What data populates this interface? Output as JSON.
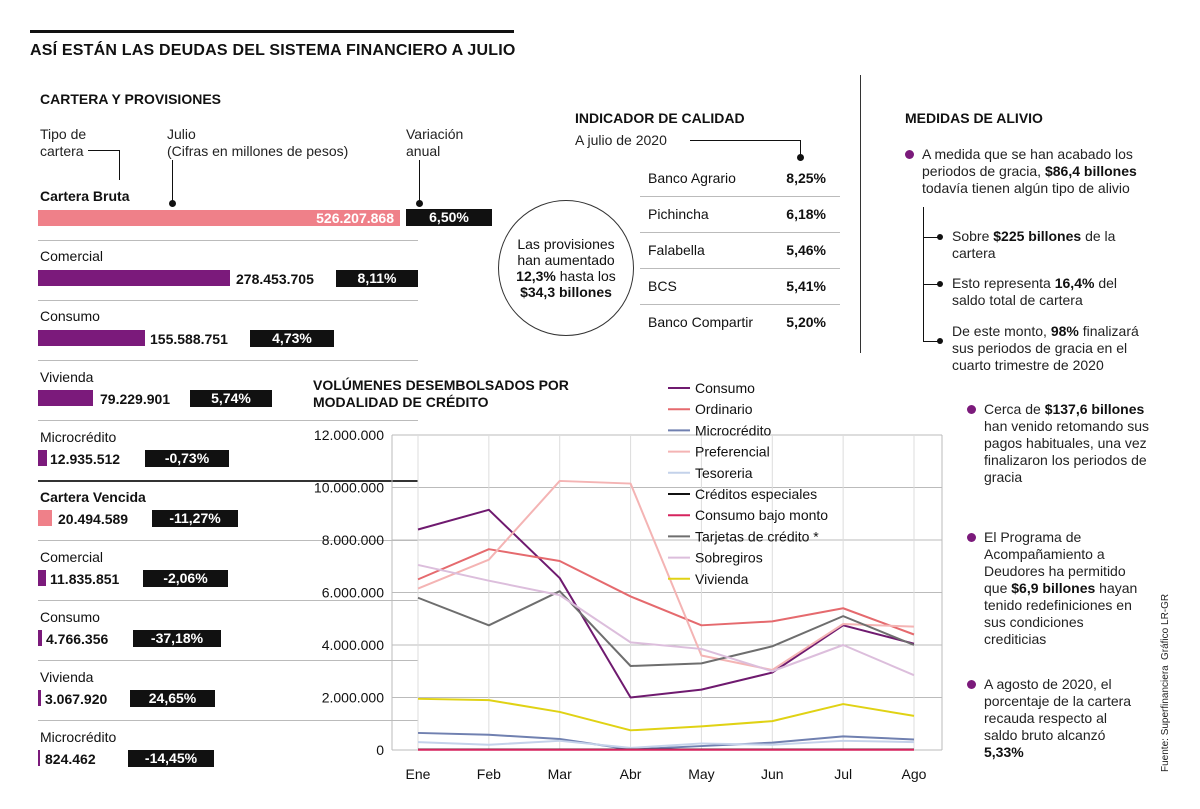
{
  "title": "ASÍ ESTÁN LAS DEUDAS DEL SISTEMA FINANCIERO A JULIO",
  "cartera": {
    "title": "CARTERA Y PROVISIONES",
    "col_tipo": "Tipo de cartera",
    "col_julio_1": "Julio",
    "col_julio_2": "(Cifras en millones de pesos)",
    "col_var": "Variación anual",
    "rows": [
      {
        "name": "Cartera Bruta",
        "value": "526.207.868",
        "amount": 526207868,
        "change": "6,50%"
      },
      {
        "name": "Comercial",
        "value": "278.453.705",
        "amount": 278453705,
        "change": "8,11%"
      },
      {
        "name": "Consumo",
        "value": "155.588.751",
        "amount": 155588751,
        "change": "4,73%"
      },
      {
        "name": "Vivienda",
        "value": "79.229.901",
        "amount": 79229901,
        "change": "5,74%"
      },
      {
        "name": "Microcrédito",
        "value": "12.935.512",
        "amount": 12935512,
        "change": "-0,73%"
      },
      {
        "name": "Cartera Vencida",
        "value": "20.494.589",
        "amount": 20494589,
        "change": "-11,27%"
      },
      {
        "name": "Comercial",
        "value": "11.835.851",
        "amount": 11835851,
        "change": "-2,06%"
      },
      {
        "name": "Consumo",
        "value": "4.766.356",
        "amount": 4766356,
        "change": "-37,18%"
      },
      {
        "name": "Vivienda",
        "value": "3.067.920",
        "amount": 3067920,
        "change": "24,65%"
      },
      {
        "name": "Microcrédito",
        "value": "824.462",
        "amount": 824462,
        "change": "-14,45%"
      }
    ]
  },
  "circle": {
    "l1": "Las provisiones",
    "l2": "han aumentado",
    "l3": "12,3%",
    "l3b": " hasta los",
    "l4": "$34,3 billones"
  },
  "calidad": {
    "title": "INDICADOR DE CALIDAD",
    "subtitle": "A julio de 2020",
    "rows": [
      {
        "bank": "Banco Agrario",
        "value": "8,25%"
      },
      {
        "bank": "Pichincha",
        "value": "6,18%"
      },
      {
        "bank": "Falabella",
        "value": "5,46%"
      },
      {
        "bank": "BCS",
        "value": "5,41%"
      },
      {
        "bank": "Banco Compartir",
        "value": "5,20%"
      }
    ]
  },
  "alivio": {
    "title": "MEDIDAS DE ALIVIO",
    "b1_a": "A medida que se han acabado los periodos de gracia, ",
    "b1_b": "$86,4 billones",
    "b1_c": " todavía tienen algún tipo de alivio",
    "s1_a": "Sobre ",
    "s1_b": "$225 billones",
    "s1_c": " de la cartera",
    "s2_a": "Esto representa ",
    "s2_b": "16,4%",
    "s2_c": " del saldo total de cartera",
    "s3_a": "De este monto, ",
    "s3_b": "98%",
    "s3_c": " finalizará sus periodos de gracia en el cuarto trimestre de 2020",
    "b2_a": "Cerca de ",
    "b2_b": "$137,6 billones",
    "b2_c": " han venido retomando sus pagos habituales, una vez finalizaron los periodos de gracia",
    "b3_a": "El Programa de Acompañamiento a Deudores ha permitido que ",
    "b3_b": "$6,9 billones",
    "b3_c": " hayan tenido redefiniciones en sus condiciones crediticias",
    "b4_a": "A agosto de 2020, el porcentaje de la cartera recauda respecto al saldo bruto alcanzó ",
    "b4_b": "5,33%"
  },
  "credits": {
    "source": "Fuente: Superfinanciera",
    "graphic": "Gráfico LR-GR"
  },
  "colors": {
    "pink_bar": "#ef8089",
    "purple_bar": "#7b1a7b"
  },
  "chart_data": {
    "type": "line",
    "title": "VOLÚMENES DESEMBOLSADOS POR MODALIDAD DE CRÉDITO",
    "categories": [
      "Ene",
      "Feb",
      "Mar",
      "Abr",
      "May",
      "Jun",
      "Jul",
      "Ago"
    ],
    "ylim": [
      0,
      12000000
    ],
    "yticks": [
      0,
      2000000,
      4000000,
      6000000,
      8000000,
      10000000,
      12000000
    ],
    "ytick_labels": [
      "0",
      "2.000.000",
      "4.000.000",
      "6.000.000",
      "8.000.000",
      "10.000.000",
      "12.000.000"
    ],
    "series": [
      {
        "name": "Consumo",
        "color": "#6f1a6f",
        "values": [
          8400000,
          9150000,
          6550000,
          2000000,
          2300000,
          2950000,
          4750000,
          4050000
        ]
      },
      {
        "name": "Ordinario",
        "color": "#e56a6e",
        "values": [
          6500000,
          7650000,
          7200000,
          5850000,
          4750000,
          4900000,
          5400000,
          4400000
        ]
      },
      {
        "name": "Microcrédito",
        "color": "#7080b0",
        "values": [
          650000,
          580000,
          420000,
          20000,
          150000,
          280000,
          520000,
          400000
        ]
      },
      {
        "name": "Preferencial",
        "color": "#f4b4b4",
        "values": [
          6150000,
          7250000,
          10250000,
          10150000,
          3600000,
          3050000,
          4800000,
          4700000
        ]
      },
      {
        "name": "Tesoreria",
        "color": "#c4d2ea",
        "values": [
          300000,
          200000,
          350000,
          80000,
          250000,
          200000,
          350000,
          300000
        ]
      },
      {
        "name": "Créditos especiales",
        "color": "#111111",
        "values": [
          20000,
          20000,
          20000,
          20000,
          20000,
          20000,
          20000,
          20000
        ]
      },
      {
        "name": "Consumo bajo monto",
        "color": "#d6245e",
        "values": [
          10000,
          10000,
          10000,
          10000,
          10000,
          10000,
          10000,
          10000
        ]
      },
      {
        "name": "Tarjetas de crédito *",
        "color": "#6e6e6e",
        "values": [
          5800000,
          4750000,
          6050000,
          3200000,
          3300000,
          3950000,
          5100000,
          4000000
        ]
      },
      {
        "name": "Sobregiros",
        "color": "#dcbedc",
        "values": [
          7050000,
          6450000,
          5900000,
          4100000,
          3850000,
          3000000,
          4000000,
          2850000
        ]
      },
      {
        "name": "Vivienda",
        "color": "#e0d214",
        "values": [
          1950000,
          1900000,
          1450000,
          750000,
          900000,
          1100000,
          1750000,
          1300000
        ]
      }
    ]
  }
}
